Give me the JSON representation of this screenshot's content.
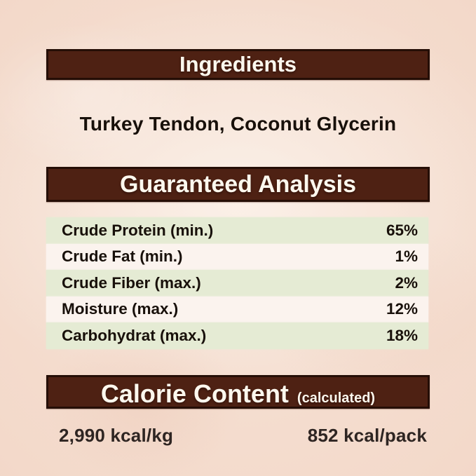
{
  "colors": {
    "background_edge": "#eecdbc",
    "background_center": "#f8e9df",
    "bar_fill": "#4e2113",
    "bar_border": "#250e06",
    "bar_text": "#fdf8ee",
    "row_green": "#e5ebd4",
    "row_light": "#fbf3ee",
    "text_dark": "#18100a"
  },
  "sections": {
    "ingredients": {
      "title": "Ingredients",
      "value": "Turkey Tendon, Coconut Glycerin"
    },
    "guaranteed_analysis": {
      "title": "Guaranteed Analysis",
      "rows": [
        {
          "label": "Crude Protein (min.)",
          "value": "65%"
        },
        {
          "label": "Crude Fat (min.)",
          "value": "1%"
        },
        {
          "label": "Crude Fiber (max.)",
          "value": "2%"
        },
        {
          "label": "Moisture (max.)",
          "value": "12%"
        },
        {
          "label": "Carbohydrat (max.)",
          "value": "18%"
        }
      ]
    },
    "calorie_content": {
      "title": "Calorie Content",
      "subtitle": "(calculated)",
      "per_kg": "2,990 kcal/kg",
      "per_pack": "852 kcal/pack"
    }
  }
}
